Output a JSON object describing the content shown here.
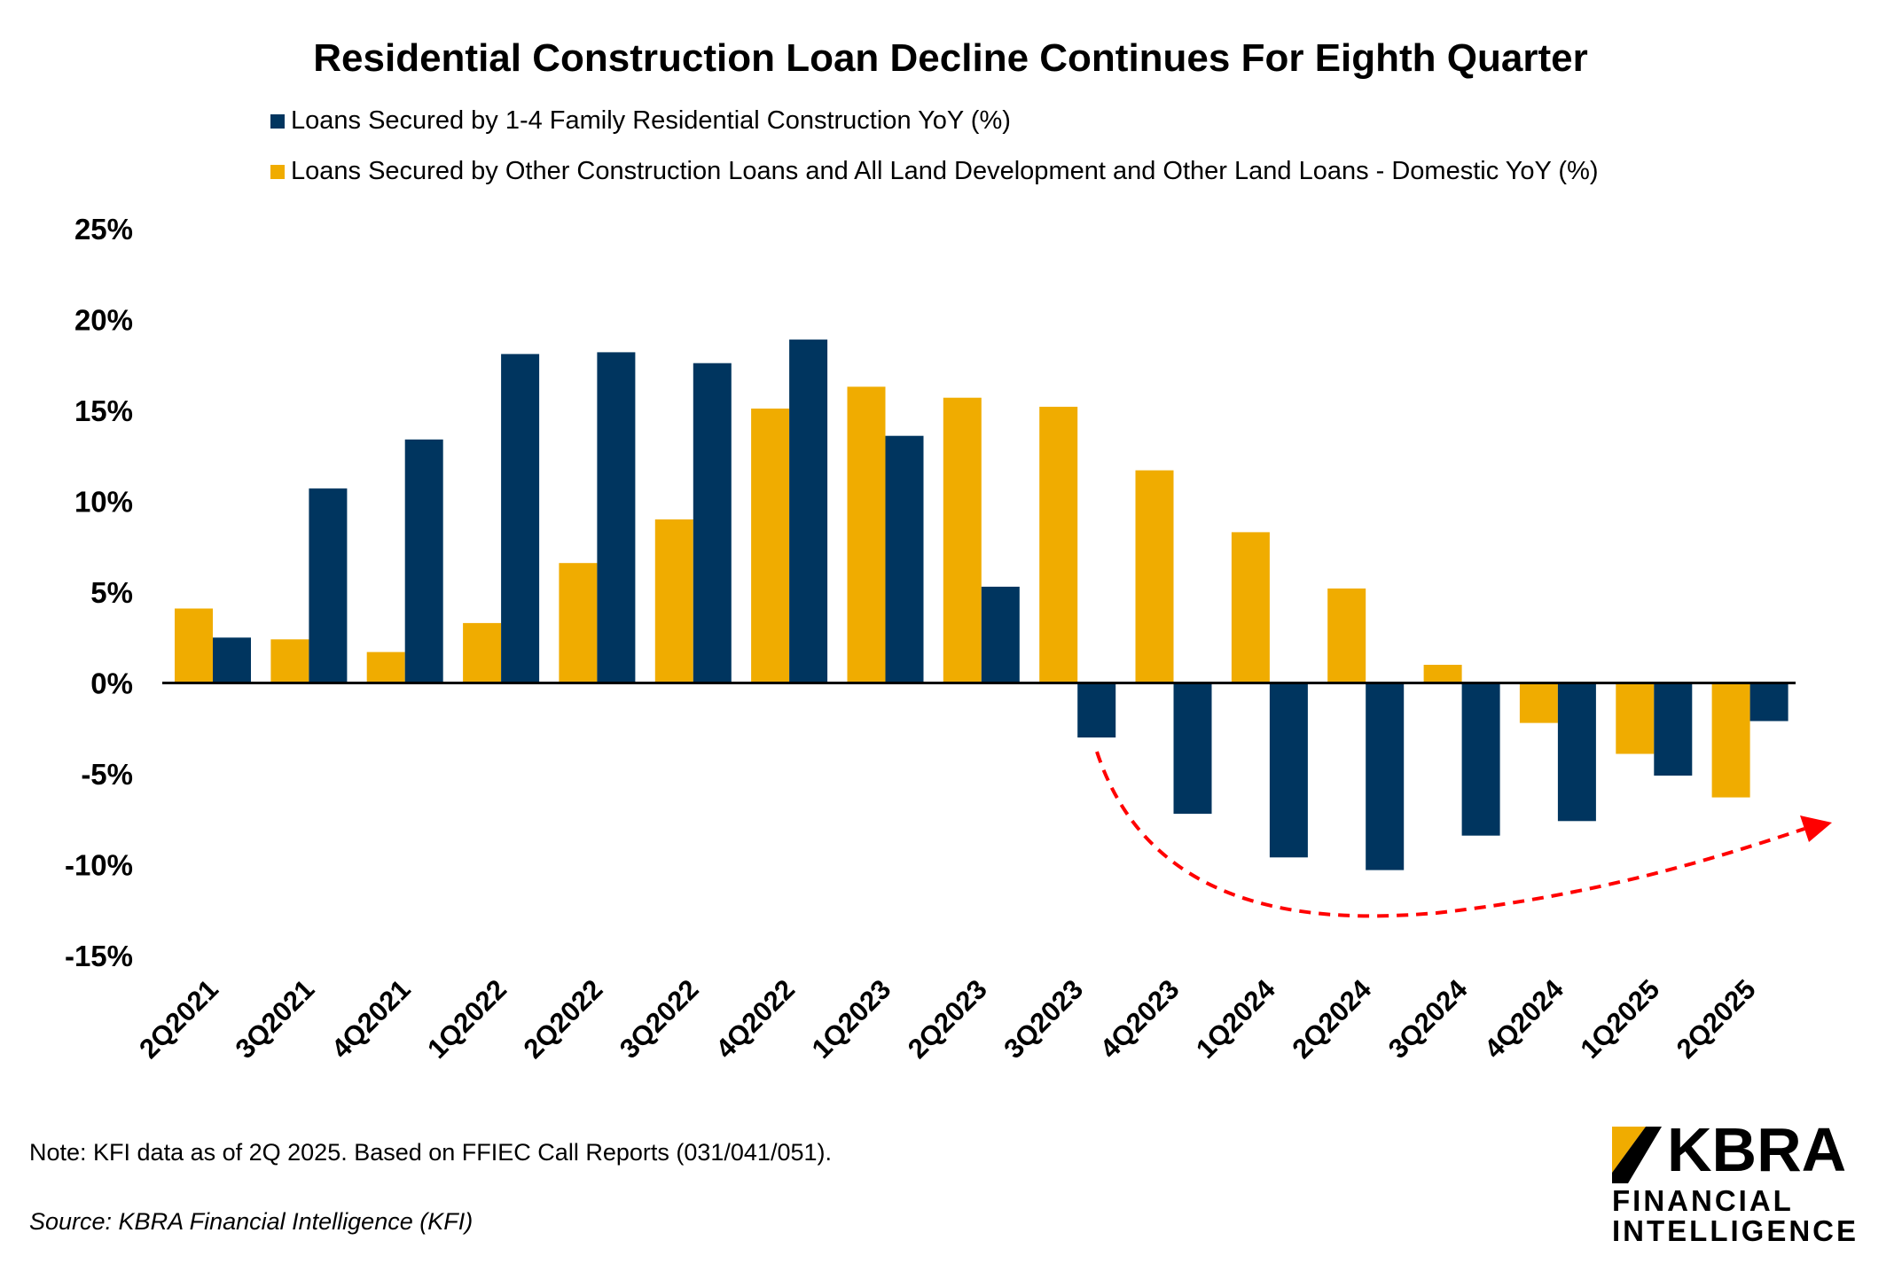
{
  "chart_data": {
    "type": "bar",
    "title": "Residential Construction Loan Decline Continues For Eighth Quarter",
    "categories": [
      "2Q2021",
      "3Q2021",
      "4Q2021",
      "1Q2022",
      "2Q2022",
      "3Q2022",
      "4Q2022",
      "1Q2023",
      "2Q2023",
      "3Q2023",
      "4Q2023",
      "1Q2024",
      "2Q2024",
      "3Q2024",
      "4Q2024",
      "1Q2025",
      "2Q2025"
    ],
    "series": [
      {
        "name": "Loans Secured by Other Construction Loans and All Land Development and Other Land Loans - Domestic YoY (%)",
        "color": "#F0AC00",
        "values": [
          4.1,
          2.4,
          1.7,
          3.3,
          6.6,
          9.0,
          15.1,
          16.3,
          15.7,
          15.2,
          11.7,
          8.3,
          5.2,
          1.0,
          -2.2,
          -3.9,
          -6.3
        ]
      },
      {
        "name": "Loans Secured by 1-4 Family Residential Construction YoY (%)",
        "color": "#00355F",
        "values": [
          2.5,
          10.7,
          13.4,
          18.1,
          18.2,
          17.6,
          18.9,
          13.6,
          5.3,
          -3.0,
          -7.2,
          -9.6,
          -10.3,
          -8.4,
          -7.6,
          -5.1,
          -2.1
        ]
      }
    ],
    "legend_order": [
      1,
      0
    ],
    "yticks": [
      "25%",
      "20%",
      "15%",
      "10%",
      "5%",
      "0%",
      "-5%",
      "-10%",
      "-15%"
    ],
    "ytick_values": [
      25,
      20,
      15,
      10,
      5,
      0,
      -5,
      -10,
      -15
    ],
    "ylim": [
      -15,
      25
    ],
    "xlabel": "",
    "ylabel": "",
    "grid": false,
    "legend_position": "top",
    "annotation": {
      "type": "dashed-arrow",
      "color": "#FF0000",
      "from_category": "3Q2023",
      "to_category": "2Q2025"
    }
  },
  "footer": {
    "note": "Note: KFI data as of 2Q 2025. Based on FFIEC Call Reports (031/041/051).",
    "source": "Source: KBRA Financial Intelligence (KFI)"
  },
  "logo": {
    "main": "KBRA",
    "line1": "FINANCIAL",
    "line2": "INTELLIGENCE",
    "accent_color": "#F0AC00"
  }
}
